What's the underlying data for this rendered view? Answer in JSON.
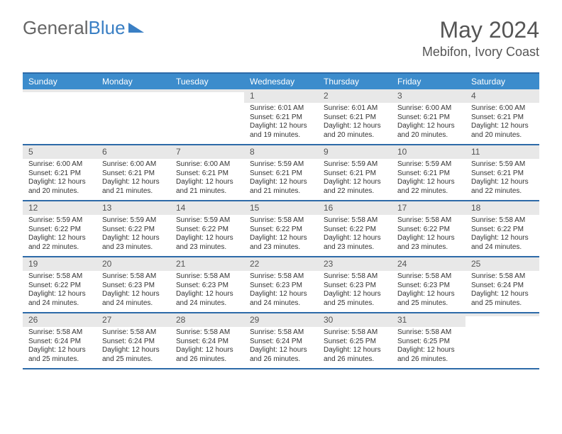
{
  "logo": {
    "part1": "General",
    "part2": "Blue"
  },
  "title": "May 2024",
  "location": "Mebifon, Ivory Coast",
  "colors": {
    "header_bg": "#3c8ccc",
    "border": "#2d6aa8",
    "daynum_bg": "#e8e8e8",
    "text": "#333333",
    "logo_gray": "#666666",
    "logo_blue": "#3a7fc4"
  },
  "day_headers": [
    "Sunday",
    "Monday",
    "Tuesday",
    "Wednesday",
    "Thursday",
    "Friday",
    "Saturday"
  ],
  "weeks": [
    [
      {
        "n": "",
        "sr": "",
        "ss": "",
        "dl": ""
      },
      {
        "n": "",
        "sr": "",
        "ss": "",
        "dl": ""
      },
      {
        "n": "",
        "sr": "",
        "ss": "",
        "dl": ""
      },
      {
        "n": "1",
        "sr": "Sunrise: 6:01 AM",
        "ss": "Sunset: 6:21 PM",
        "dl": "Daylight: 12 hours and 19 minutes."
      },
      {
        "n": "2",
        "sr": "Sunrise: 6:01 AM",
        "ss": "Sunset: 6:21 PM",
        "dl": "Daylight: 12 hours and 20 minutes."
      },
      {
        "n": "3",
        "sr": "Sunrise: 6:00 AM",
        "ss": "Sunset: 6:21 PM",
        "dl": "Daylight: 12 hours and 20 minutes."
      },
      {
        "n": "4",
        "sr": "Sunrise: 6:00 AM",
        "ss": "Sunset: 6:21 PM",
        "dl": "Daylight: 12 hours and 20 minutes."
      }
    ],
    [
      {
        "n": "5",
        "sr": "Sunrise: 6:00 AM",
        "ss": "Sunset: 6:21 PM",
        "dl": "Daylight: 12 hours and 20 minutes."
      },
      {
        "n": "6",
        "sr": "Sunrise: 6:00 AM",
        "ss": "Sunset: 6:21 PM",
        "dl": "Daylight: 12 hours and 21 minutes."
      },
      {
        "n": "7",
        "sr": "Sunrise: 6:00 AM",
        "ss": "Sunset: 6:21 PM",
        "dl": "Daylight: 12 hours and 21 minutes."
      },
      {
        "n": "8",
        "sr": "Sunrise: 5:59 AM",
        "ss": "Sunset: 6:21 PM",
        "dl": "Daylight: 12 hours and 21 minutes."
      },
      {
        "n": "9",
        "sr": "Sunrise: 5:59 AM",
        "ss": "Sunset: 6:21 PM",
        "dl": "Daylight: 12 hours and 22 minutes."
      },
      {
        "n": "10",
        "sr": "Sunrise: 5:59 AM",
        "ss": "Sunset: 6:21 PM",
        "dl": "Daylight: 12 hours and 22 minutes."
      },
      {
        "n": "11",
        "sr": "Sunrise: 5:59 AM",
        "ss": "Sunset: 6:21 PM",
        "dl": "Daylight: 12 hours and 22 minutes."
      }
    ],
    [
      {
        "n": "12",
        "sr": "Sunrise: 5:59 AM",
        "ss": "Sunset: 6:22 PM",
        "dl": "Daylight: 12 hours and 22 minutes."
      },
      {
        "n": "13",
        "sr": "Sunrise: 5:59 AM",
        "ss": "Sunset: 6:22 PM",
        "dl": "Daylight: 12 hours and 23 minutes."
      },
      {
        "n": "14",
        "sr": "Sunrise: 5:59 AM",
        "ss": "Sunset: 6:22 PM",
        "dl": "Daylight: 12 hours and 23 minutes."
      },
      {
        "n": "15",
        "sr": "Sunrise: 5:58 AM",
        "ss": "Sunset: 6:22 PM",
        "dl": "Daylight: 12 hours and 23 minutes."
      },
      {
        "n": "16",
        "sr": "Sunrise: 5:58 AM",
        "ss": "Sunset: 6:22 PM",
        "dl": "Daylight: 12 hours and 23 minutes."
      },
      {
        "n": "17",
        "sr": "Sunrise: 5:58 AM",
        "ss": "Sunset: 6:22 PM",
        "dl": "Daylight: 12 hours and 23 minutes."
      },
      {
        "n": "18",
        "sr": "Sunrise: 5:58 AM",
        "ss": "Sunset: 6:22 PM",
        "dl": "Daylight: 12 hours and 24 minutes."
      }
    ],
    [
      {
        "n": "19",
        "sr": "Sunrise: 5:58 AM",
        "ss": "Sunset: 6:22 PM",
        "dl": "Daylight: 12 hours and 24 minutes."
      },
      {
        "n": "20",
        "sr": "Sunrise: 5:58 AM",
        "ss": "Sunset: 6:23 PM",
        "dl": "Daylight: 12 hours and 24 minutes."
      },
      {
        "n": "21",
        "sr": "Sunrise: 5:58 AM",
        "ss": "Sunset: 6:23 PM",
        "dl": "Daylight: 12 hours and 24 minutes."
      },
      {
        "n": "22",
        "sr": "Sunrise: 5:58 AM",
        "ss": "Sunset: 6:23 PM",
        "dl": "Daylight: 12 hours and 24 minutes."
      },
      {
        "n": "23",
        "sr": "Sunrise: 5:58 AM",
        "ss": "Sunset: 6:23 PM",
        "dl": "Daylight: 12 hours and 25 minutes."
      },
      {
        "n": "24",
        "sr": "Sunrise: 5:58 AM",
        "ss": "Sunset: 6:23 PM",
        "dl": "Daylight: 12 hours and 25 minutes."
      },
      {
        "n": "25",
        "sr": "Sunrise: 5:58 AM",
        "ss": "Sunset: 6:24 PM",
        "dl": "Daylight: 12 hours and 25 minutes."
      }
    ],
    [
      {
        "n": "26",
        "sr": "Sunrise: 5:58 AM",
        "ss": "Sunset: 6:24 PM",
        "dl": "Daylight: 12 hours and 25 minutes."
      },
      {
        "n": "27",
        "sr": "Sunrise: 5:58 AM",
        "ss": "Sunset: 6:24 PM",
        "dl": "Daylight: 12 hours and 25 minutes."
      },
      {
        "n": "28",
        "sr": "Sunrise: 5:58 AM",
        "ss": "Sunset: 6:24 PM",
        "dl": "Daylight: 12 hours and 26 minutes."
      },
      {
        "n": "29",
        "sr": "Sunrise: 5:58 AM",
        "ss": "Sunset: 6:24 PM",
        "dl": "Daylight: 12 hours and 26 minutes."
      },
      {
        "n": "30",
        "sr": "Sunrise: 5:58 AM",
        "ss": "Sunset: 6:25 PM",
        "dl": "Daylight: 12 hours and 26 minutes."
      },
      {
        "n": "31",
        "sr": "Sunrise: 5:58 AM",
        "ss": "Sunset: 6:25 PM",
        "dl": "Daylight: 12 hours and 26 minutes."
      },
      {
        "n": "",
        "sr": "",
        "ss": "",
        "dl": ""
      }
    ]
  ]
}
